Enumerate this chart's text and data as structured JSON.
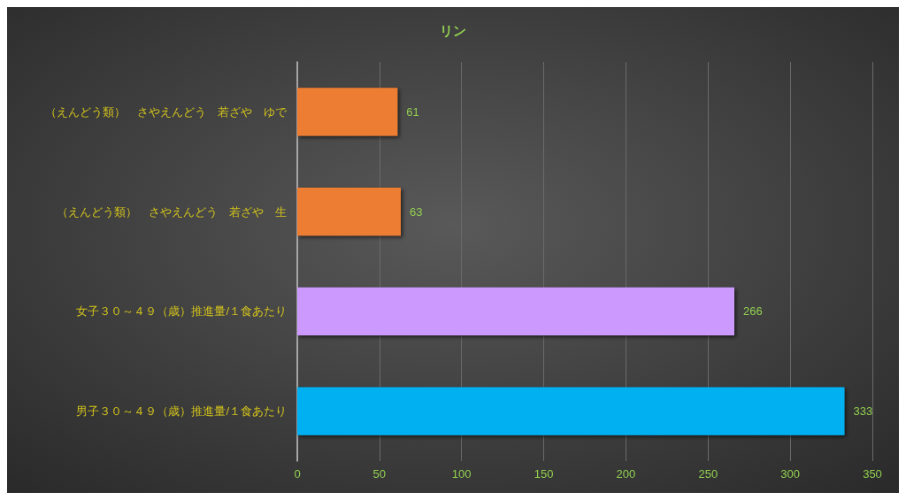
{
  "chart_data": {
    "type": "bar",
    "orientation": "horizontal",
    "title": "リン",
    "categories": [
      "（えんどう類）　さやえんどう　若ざや　ゆで",
      "（えんどう類）　さやえんどう　若ざや　生",
      "女子３０～４９（歳）推進量/１食あたり",
      "男子３０～４９（歳）推進量/１食あたり"
    ],
    "values": [
      61,
      63,
      266,
      333
    ],
    "colors": [
      "#ed7d31",
      "#ed7d31",
      "#cc99ff",
      "#00b0f0"
    ],
    "xlim": [
      0,
      350
    ],
    "xticks": [
      0,
      50,
      100,
      150,
      200,
      250,
      300,
      350
    ],
    "grid": "x",
    "data_labels": true
  }
}
